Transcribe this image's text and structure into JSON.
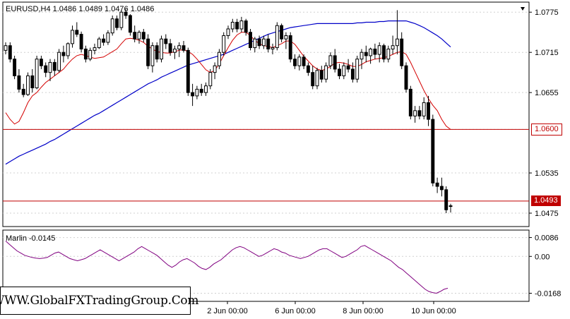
{
  "header": {
    "symbol_line": "EURUSD,H4  1.0486 1.0489 1.0476 1.0486"
  },
  "indicator": {
    "label": "Marlin -0.0145"
  },
  "watermark": "WWW.GlobalFXTradingGroup.Com",
  "levels": {
    "resistance_label": "1.0600",
    "current_label": "1.0493",
    "resistance": 1.06,
    "current": 1.0493
  },
  "colors": {
    "candle": "#000000",
    "ma_fast": "#d40000",
    "ma_slow": "#0000c8",
    "level": "#c00000",
    "marlin": "#800080",
    "grid": "#d0d0d0"
  },
  "chart_data": [
    {
      "type": "candlestick",
      "title": "EURUSD,H4",
      "y_ticks": [
        "1.0775",
        "1.0715",
        "1.0655",
        "1.0600",
        "1.0535",
        "1.0493",
        "1.0475"
      ],
      "x_ticks": [
        "2 Jun 00:00",
        "6 Jun 00:00",
        "8 Jun 00:00",
        "10 Jun 00:00"
      ],
      "ylim": [
        1.0455,
        1.079
      ],
      "horizontal_lines": [
        1.06,
        1.0493
      ],
      "candles": [
        [
          1.0718,
          1.073,
          1.0712,
          1.0725
        ],
        [
          1.0725,
          1.073,
          1.07,
          1.0705
        ],
        [
          1.0705,
          1.071,
          1.0675,
          1.068
        ],
        [
          1.068,
          1.069,
          1.0655,
          1.066
        ],
        [
          1.066,
          1.0668,
          1.0648,
          1.0652
        ],
        [
          1.0652,
          1.0685,
          1.065,
          1.068
        ],
        [
          1.068,
          1.069,
          1.0655,
          1.0662
        ],
        [
          1.0662,
          1.071,
          1.066,
          1.0705
        ],
        [
          1.0705,
          1.071,
          1.069,
          1.0695
        ],
        [
          1.0695,
          1.07,
          1.0678,
          1.0685
        ],
        [
          1.0685,
          1.0705,
          1.0672,
          1.07
        ],
        [
          1.07,
          1.0705,
          1.068,
          1.0688
        ],
        [
          1.0688,
          1.072,
          1.0685,
          1.0715
        ],
        [
          1.0715,
          1.0725,
          1.07,
          1.071
        ],
        [
          1.071,
          1.073,
          1.0705,
          1.0728
        ],
        [
          1.0728,
          1.0755,
          1.0722,
          1.0748
        ],
        [
          1.0748,
          1.076,
          1.0738,
          1.0742
        ],
        [
          1.0742,
          1.0746,
          1.0715,
          1.072
        ],
        [
          1.072,
          1.0725,
          1.07,
          1.0705
        ],
        [
          1.0705,
          1.0722,
          1.0702,
          1.0718
        ],
        [
          1.0718,
          1.0728,
          1.0712,
          1.0722
        ],
        [
          1.0722,
          1.0738,
          1.072,
          1.0735
        ],
        [
          1.0735,
          1.0742,
          1.0725,
          1.073
        ],
        [
          1.073,
          1.0748,
          1.0726,
          1.0744
        ],
        [
          1.0744,
          1.077,
          1.074,
          1.0765
        ],
        [
          1.0765,
          1.077,
          1.0748,
          1.0752
        ],
        [
          1.0752,
          1.0778,
          1.0748,
          1.0775
        ],
        [
          1.0775,
          1.078,
          1.0765,
          1.077
        ],
        [
          1.077,
          1.0772,
          1.074,
          1.0745
        ],
        [
          1.0745,
          1.0755,
          1.073,
          1.0735
        ],
        [
          1.0735,
          1.0748,
          1.0728,
          1.0745
        ],
        [
          1.0745,
          1.075,
          1.073,
          1.0735
        ],
        [
          1.0735,
          1.0742,
          1.069,
          1.0695
        ],
        [
          1.0695,
          1.073,
          1.0685,
          1.0725
        ],
        [
          1.0725,
          1.073,
          1.07,
          1.0705
        ],
        [
          1.0705,
          1.074,
          1.07,
          1.0735
        ],
        [
          1.0735,
          1.0742,
          1.072,
          1.0728
        ],
        [
          1.0728,
          1.0735,
          1.071,
          1.0715
        ],
        [
          1.0715,
          1.0725,
          1.0705,
          1.072
        ],
        [
          1.072,
          1.073,
          1.0708,
          1.0725
        ],
        [
          1.0725,
          1.0732,
          1.0715,
          1.0718
        ],
        [
          1.0718,
          1.0722,
          1.065,
          1.0655
        ],
        [
          1.0655,
          1.0668,
          1.0635,
          1.065
        ],
        [
          1.065,
          1.0665,
          1.0645,
          1.066
        ],
        [
          1.066,
          1.0668,
          1.065,
          1.0655
        ],
        [
          1.0655,
          1.067,
          1.065,
          1.0665
        ],
        [
          1.0665,
          1.069,
          1.066,
          1.0685
        ],
        [
          1.0685,
          1.07,
          1.0675,
          1.0695
        ],
        [
          1.0695,
          1.072,
          1.069,
          1.0715
        ],
        [
          1.0715,
          1.0745,
          1.071,
          1.074
        ],
        [
          1.074,
          1.0755,
          1.0735,
          1.075
        ],
        [
          1.075,
          1.0765,
          1.0745,
          1.076
        ],
        [
          1.076,
          1.0765,
          1.0745,
          1.075
        ],
        [
          1.075,
          1.0768,
          1.0745,
          1.0762
        ],
        [
          1.0762,
          1.0765,
          1.074,
          1.0745
        ],
        [
          1.0745,
          1.075,
          1.0718,
          1.0722
        ],
        [
          1.0722,
          1.0738,
          1.0715,
          1.0735
        ],
        [
          1.0735,
          1.074,
          1.072,
          1.0725
        ],
        [
          1.0725,
          1.074,
          1.072,
          1.0735
        ],
        [
          1.0735,
          1.0742,
          1.0715,
          1.072
        ],
        [
          1.072,
          1.0728,
          1.0712,
          1.0722
        ],
        [
          1.0722,
          1.076,
          1.0718,
          1.0755
        ],
        [
          1.0755,
          1.0758,
          1.073,
          1.0735
        ],
        [
          1.0735,
          1.0745,
          1.072,
          1.074
        ],
        [
          1.074,
          1.0745,
          1.07,
          1.0705
        ],
        [
          1.0705,
          1.0712,
          1.069,
          1.0695
        ],
        [
          1.0695,
          1.0712,
          1.0688,
          1.0708
        ],
        [
          1.0708,
          1.0712,
          1.069,
          1.0695
        ],
        [
          1.0695,
          1.07,
          1.068,
          1.0685
        ],
        [
          1.0685,
          1.0695,
          1.066,
          1.0665
        ],
        [
          1.0665,
          1.0692,
          1.066,
          1.0688
        ],
        [
          1.0688,
          1.0695,
          1.067,
          1.0675
        ],
        [
          1.0675,
          1.07,
          1.067,
          1.0695
        ],
        [
          1.0695,
          1.0715,
          1.069,
          1.071
        ],
        [
          1.071,
          1.072,
          1.0685,
          1.069
        ],
        [
          1.069,
          1.0698,
          1.0675,
          1.068
        ],
        [
          1.068,
          1.07,
          1.0675,
          1.0695
        ],
        [
          1.0695,
          1.0705,
          1.0685,
          1.069
        ],
        [
          1.069,
          1.07,
          1.067,
          1.0675
        ],
        [
          1.0675,
          1.071,
          1.067,
          1.0705
        ],
        [
          1.0705,
          1.072,
          1.069,
          1.0715
        ],
        [
          1.0715,
          1.0725,
          1.07,
          1.071
        ],
        [
          1.071,
          1.0722,
          1.0698,
          1.072
        ],
        [
          1.072,
          1.0728,
          1.0705,
          1.0712
        ],
        [
          1.0712,
          1.073,
          1.07,
          1.0725
        ],
        [
          1.0725,
          1.0728,
          1.07,
          1.0705
        ],
        [
          1.0705,
          1.0725,
          1.07,
          1.072
        ],
        [
          1.072,
          1.074,
          1.0712,
          1.0725
        ],
        [
          1.0725,
          1.0778,
          1.0712,
          1.0735
        ],
        [
          1.0735,
          1.0745,
          1.069,
          1.0695
        ],
        [
          1.0695,
          1.07,
          1.0655,
          1.066
        ],
        [
          1.066,
          1.0665,
          1.0615,
          1.062
        ],
        [
          1.062,
          1.0635,
          1.061,
          1.0628
        ],
        [
          1.0628,
          1.0635,
          1.0615,
          1.062
        ],
        [
          1.062,
          1.0648,
          1.0615,
          1.064
        ],
        [
          1.064,
          1.065,
          1.0605,
          1.0615
        ],
        [
          1.0615,
          1.0622,
          1.0515,
          1.052
        ],
        [
          1.052,
          1.0528,
          1.0505,
          1.0515
        ],
        [
          1.0515,
          1.0528,
          1.05,
          1.051
        ],
        [
          1.051,
          1.0515,
          1.0475,
          1.048
        ],
        [
          1.0486,
          1.0489,
          1.0476,
          1.0486
        ]
      ],
      "ma_fast_label": "",
      "ma_fast": [
        1.0625,
        1.0615,
        1.0608,
        1.0612,
        1.0625,
        1.064,
        1.065,
        1.0655,
        1.0663,
        1.067,
        1.0675,
        1.068,
        1.0685,
        1.069,
        1.0698,
        1.0705,
        1.071,
        1.0712,
        1.071,
        1.0708,
        1.0706,
        1.0707,
        1.0708,
        1.0712,
        1.0716,
        1.072,
        1.0728,
        1.0735,
        1.0736,
        1.0735,
        1.0733,
        1.073,
        1.0724,
        1.072,
        1.0716,
        1.0715,
        1.0714,
        1.0714,
        1.0716,
        1.0718,
        1.0719,
        1.0716,
        1.0712,
        1.0705,
        1.0697,
        1.0689,
        1.0685,
        1.0688,
        1.0698,
        1.071,
        1.0722,
        1.0733,
        1.0741,
        1.0745,
        1.0745,
        1.074,
        1.0733,
        1.0728,
        1.0725,
        1.0724,
        1.0722,
        1.0725,
        1.0728,
        1.0732,
        1.0732,
        1.0727,
        1.0718,
        1.0709,
        1.0702,
        1.0695,
        1.069,
        1.0688,
        1.069,
        1.0694,
        1.0699,
        1.07,
        1.0699,
        1.0697,
        1.0694,
        1.0694,
        1.0697,
        1.0701,
        1.0703,
        1.0705,
        1.0706,
        1.0707,
        1.0709,
        1.0712,
        1.0715,
        1.0716,
        1.0712,
        1.07,
        1.0686,
        1.0672,
        1.0658,
        1.0646,
        1.0636,
        1.0628,
        1.0615,
        1.0605,
        1.06
      ],
      "ma_slow_label": "",
      "ma_slow": [
        1.0548,
        1.0552,
        1.0556,
        1.056,
        1.0563,
        1.0566,
        1.0569,
        1.0572,
        1.0575,
        1.0578,
        1.0582,
        1.0585,
        1.0589,
        1.0593,
        1.0597,
        1.0601,
        1.0605,
        1.0609,
        1.0613,
        1.0617,
        1.0621,
        1.0624,
        1.0628,
        1.0632,
        1.0636,
        1.064,
        1.0644,
        1.0648,
        1.0652,
        1.0656,
        1.066,
        1.0664,
        1.0668,
        1.0671,
        1.0674,
        1.0678,
        1.0681,
        1.0684,
        1.0687,
        1.069,
        1.0693,
        1.0696,
        1.0698,
        1.07,
        1.0702,
        1.0704,
        1.0706,
        1.0708,
        1.071,
        1.0712,
        1.0715,
        1.0718,
        1.0721,
        1.0724,
        1.0727,
        1.073,
        1.0733,
        1.0736,
        1.0739,
        1.0742,
        1.0744,
        1.0746,
        1.0748,
        1.075,
        1.0752,
        1.0753,
        1.0754,
        1.0755,
        1.0756,
        1.0757,
        1.0758,
        1.0758,
        1.0758,
        1.0758,
        1.0758,
        1.0758,
        1.0758,
        1.0758,
        1.0758,
        1.0759,
        1.0759,
        1.076,
        1.076,
        1.076,
        1.0761,
        1.0761,
        1.0762,
        1.0762,
        1.0762,
        1.0762,
        1.0762,
        1.076,
        1.0758,
        1.0755,
        1.0752,
        1.0748,
        1.0744,
        1.074,
        1.0735,
        1.0729,
        1.0723
      ]
    },
    {
      "type": "line",
      "title": "Marlin -0.0145",
      "y_ticks": [
        "0.0086",
        "0.00",
        "-0.0168"
      ],
      "ylim": [
        -0.0205,
        0.012
      ],
      "values": [
        0.007,
        0.0055,
        0.004,
        0.0025,
        0.0015,
        0.0005,
        0.0,
        -0.0005,
        -0.0008,
        -0.001,
        -0.0008,
        -0.0005,
        0.0005,
        0.0015,
        0.002,
        0.001,
        0.0,
        -0.001,
        -0.0015,
        -0.002,
        -0.0015,
        -0.001,
        0.0,
        0.001,
        0.002,
        0.003,
        0.002,
        0.001,
        0.0,
        -0.001,
        -0.002,
        -0.001,
        0.0,
        0.001,
        0.002,
        0.0035,
        0.0045,
        0.0035,
        0.0025,
        0.0015,
        0.0005,
        -0.001,
        -0.0025,
        -0.004,
        -0.005,
        -0.004,
        -0.0025,
        -0.0015,
        -0.001,
        -0.002,
        -0.003,
        -0.0045,
        -0.0055,
        -0.006,
        -0.005,
        -0.0035,
        -0.0025,
        -0.0015,
        0.0,
        0.0015,
        0.003,
        0.004,
        0.0045,
        0.004,
        0.003,
        0.002,
        0.001,
        0.0,
        0.0005,
        0.0015,
        0.0025,
        0.0035,
        0.003,
        0.002,
        0.0015,
        0.0005,
        0.0,
        -0.0005,
        -0.001,
        -0.0005,
        0.0,
        0.001,
        0.002,
        0.003,
        0.0035,
        0.0035,
        0.0025,
        0.0015,
        0.0005,
        -0.0005,
        0.0,
        0.001,
        0.002,
        0.003,
        0.0045,
        0.005,
        0.004,
        0.003,
        0.002,
        0.001,
        0.0,
        -0.001,
        -0.002,
        -0.0035,
        -0.005,
        -0.006,
        -0.0075,
        -0.009,
        -0.0105,
        -0.012,
        -0.0135,
        -0.015,
        -0.016,
        -0.0165,
        -0.0168,
        -0.016,
        -0.015,
        -0.0145
      ]
    }
  ]
}
